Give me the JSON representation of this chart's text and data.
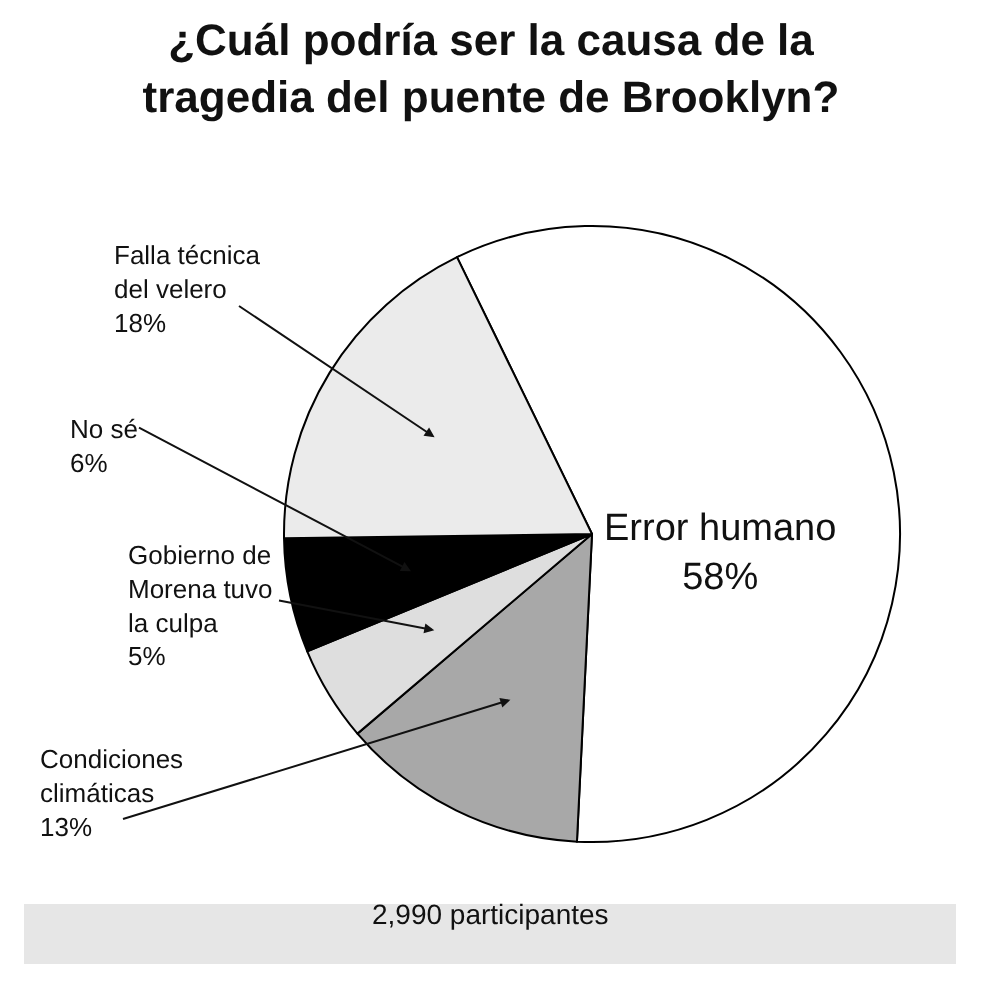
{
  "chart_data": {
    "type": "pie",
    "title": "¿Cuál podría ser la causa de la tragedia del puente de Brooklyn?",
    "categories": [
      "Error humano",
      "Condiciones climáticas",
      "Gobierno de Morena tuvo la culpa",
      "No sé",
      "Falla técnica del velero"
    ],
    "values": [
      58,
      13,
      5,
      6,
      18
    ],
    "value_labels": [
      "58%",
      "13%",
      "5%",
      "6%",
      "18%"
    ],
    "colors": [
      "#ffffff",
      "#a8a8a8",
      "#dedede",
      "#000000",
      "#ebebeb"
    ],
    "annotations": [
      "2,990 participantes"
    ],
    "legend": false
  }
}
